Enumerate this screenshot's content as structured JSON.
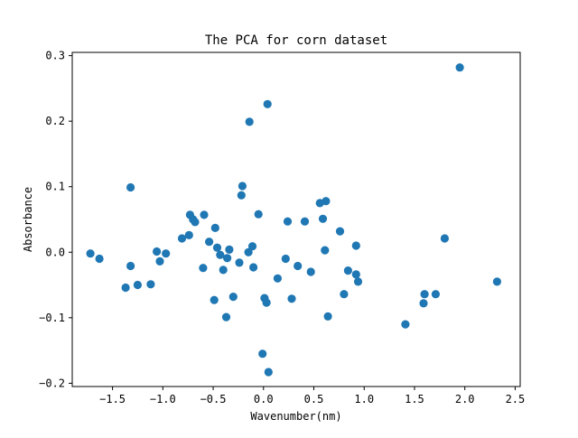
{
  "chart_data": {
    "type": "scatter",
    "title": "The  PCA for corn dataset",
    "xlabel": "Wavenumber(nm)",
    "ylabel": "Absorbance",
    "xlim": [
      -1.9,
      2.55
    ],
    "ylim": [
      -0.205,
      0.305
    ],
    "xticks": [
      -1.5,
      -1.0,
      -0.5,
      0.0,
      0.5,
      1.0,
      1.5,
      2.0,
      2.5
    ],
    "xtick_labels": [
      "−1.5",
      "−1.0",
      "−0.5",
      "0.0",
      "0.5",
      "1.0",
      "1.5",
      "2.0",
      "2.5"
    ],
    "yticks": [
      -0.2,
      -0.1,
      0.0,
      0.1,
      0.2,
      0.3
    ],
    "ytick_labels": [
      "−0.2",
      "−0.1",
      "0.0",
      "0.1",
      "0.2",
      "0.3"
    ],
    "grid": false,
    "marker_color": "#1f77b4",
    "series": [
      {
        "x": [
          -1.72,
          -1.63,
          -1.37,
          -1.32,
          -1.32,
          -1.25,
          -1.12,
          -1.06,
          -1.03,
          -0.97,
          -0.81,
          -0.74,
          -0.73,
          -0.7,
          -0.68,
          -0.6,
          -0.59,
          -0.54,
          -0.49,
          -0.48,
          -0.46,
          -0.43,
          -0.4,
          -0.37,
          -0.36,
          -0.34,
          -0.3,
          -0.24,
          -0.22,
          -0.21,
          -0.15,
          -0.14,
          -0.11,
          -0.1,
          -0.05,
          -0.01,
          0.01,
          0.03,
          0.04,
          0.05,
          0.14,
          0.22,
          0.24,
          0.28,
          0.34,
          0.41,
          0.47,
          0.56,
          0.59,
          0.61,
          0.62,
          0.64,
          0.76,
          0.8,
          0.84,
          0.92,
          0.92,
          0.94,
          1.41,
          1.59,
          1.6,
          1.71,
          1.8,
          1.95,
          2.32
        ],
        "y": [
          -0.002,
          -0.01,
          -0.054,
          0.099,
          -0.021,
          -0.05,
          -0.049,
          0.001,
          -0.014,
          -0.002,
          0.021,
          0.026,
          0.057,
          0.05,
          0.046,
          -0.024,
          0.057,
          0.016,
          -0.073,
          0.037,
          0.007,
          -0.004,
          -0.027,
          -0.099,
          -0.009,
          0.004,
          -0.068,
          -0.016,
          0.087,
          0.101,
          0.0,
          0.199,
          0.009,
          -0.023,
          0.058,
          -0.155,
          -0.07,
          -0.077,
          0.226,
          -0.183,
          -0.04,
          -0.01,
          0.047,
          -0.071,
          -0.021,
          0.047,
          -0.03,
          0.075,
          0.051,
          0.003,
          0.078,
          -0.098,
          0.032,
          -0.064,
          -0.028,
          -0.034,
          0.01,
          -0.045,
          -0.11,
          -0.078,
          -0.064,
          -0.064,
          0.021,
          0.282,
          -0.045
        ]
      }
    ]
  }
}
